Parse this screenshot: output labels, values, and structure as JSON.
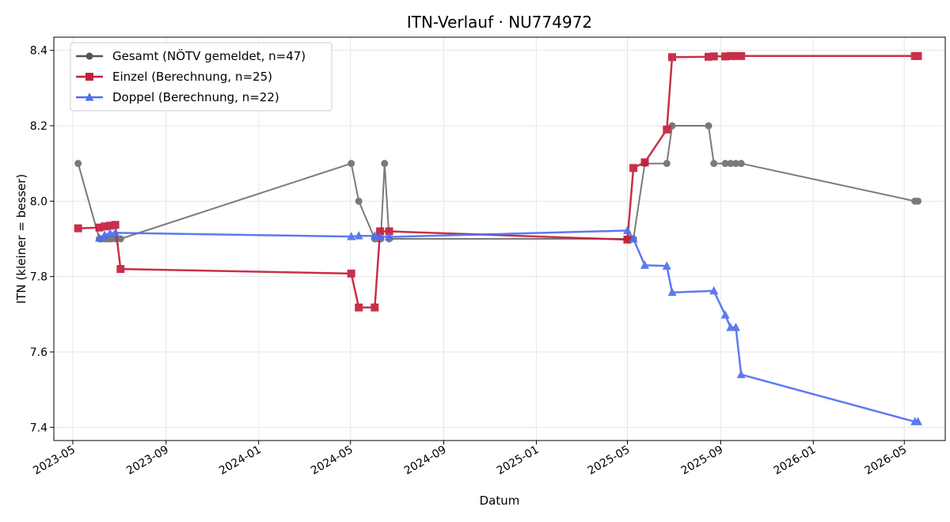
{
  "chart_data": {
    "type": "line",
    "title": "ITN-Verlauf · NU774972",
    "xlabel": "Datum",
    "ylabel": "ITN  (kleiner = besser)",
    "x_type": "date",
    "xlim": [
      "2023-04-06",
      "2026-06-24"
    ],
    "ylim": [
      7.365,
      8.435
    ],
    "x_ticks": [
      "2023-05-01",
      "2023-09-01",
      "2024-01-01",
      "2024-05-01",
      "2024-09-01",
      "2025-01-01",
      "2025-05-01",
      "2025-09-01",
      "2026-01-01",
      "2026-05-01"
    ],
    "x_tick_labels": [
      "2023-05",
      "2023-09",
      "2024-01",
      "2024-05",
      "2024-09",
      "2025-01",
      "2025-05",
      "2025-09",
      "2026-01",
      "2026-05"
    ],
    "y_ticks": [
      7.4,
      7.6,
      7.8,
      8.0,
      8.2,
      8.4
    ],
    "y_tick_labels": [
      "7.4",
      "7.6",
      "7.8",
      "8.0",
      "8.2",
      "8.4"
    ],
    "grid": true,
    "legend_position": "top-left",
    "series": [
      {
        "name": "Gesamt (NÖTV gemeldet, n=47)",
        "color": "#555555",
        "marker": "circle",
        "points": [
          [
            "2023-05-08",
            8.1
          ],
          [
            "2023-06-05",
            7.9
          ],
          [
            "2023-06-08",
            7.9
          ],
          [
            "2023-06-12",
            7.9
          ],
          [
            "2023-06-15",
            7.9
          ],
          [
            "2023-06-18",
            7.9
          ],
          [
            "2023-06-21",
            7.9
          ],
          [
            "2023-06-26",
            7.9
          ],
          [
            "2023-07-03",
            7.9
          ],
          [
            "2024-05-02",
            8.1
          ],
          [
            "2024-05-12",
            8.0
          ],
          [
            "2024-06-02",
            7.9
          ],
          [
            "2024-06-06",
            7.9
          ],
          [
            "2024-06-10",
            7.9
          ],
          [
            "2024-06-15",
            8.1
          ],
          [
            "2024-06-21",
            7.9
          ],
          [
            "2025-05-01",
            7.9
          ],
          [
            "2025-05-05",
            7.9
          ],
          [
            "2025-05-09",
            7.9
          ],
          [
            "2025-05-24",
            8.1
          ],
          [
            "2025-06-22",
            8.1
          ],
          [
            "2025-06-29",
            8.2
          ],
          [
            "2025-08-16",
            8.2
          ],
          [
            "2025-08-23",
            8.1
          ],
          [
            "2025-09-07",
            8.1
          ],
          [
            "2025-09-14",
            8.1
          ],
          [
            "2025-09-21",
            8.1
          ],
          [
            "2025-09-28",
            8.1
          ],
          [
            "2026-05-15",
            8.0
          ],
          [
            "2026-05-19",
            8.0
          ]
        ]
      },
      {
        "name": "Einzel (Berechnung, n=25)",
        "color": "#c41e3a",
        "marker": "square",
        "points": [
          [
            "2023-05-08",
            7.928
          ],
          [
            "2023-06-05",
            7.93
          ],
          [
            "2023-06-12",
            7.933
          ],
          [
            "2023-06-19",
            7.935
          ],
          [
            "2023-06-26",
            7.937
          ],
          [
            "2023-07-03",
            7.82
          ],
          [
            "2024-05-02",
            7.808
          ],
          [
            "2024-05-12",
            7.718
          ],
          [
            "2024-06-02",
            7.718
          ],
          [
            "2024-06-09",
            7.92
          ],
          [
            "2024-06-21",
            7.92
          ],
          [
            "2025-05-01",
            7.898
          ],
          [
            "2025-05-09",
            8.088
          ],
          [
            "2025-05-24",
            8.103
          ],
          [
            "2025-06-22",
            8.19
          ],
          [
            "2025-06-29",
            8.382
          ],
          [
            "2025-08-16",
            8.383
          ],
          [
            "2025-08-23",
            8.384
          ],
          [
            "2025-09-07",
            8.384
          ],
          [
            "2025-09-14",
            8.385
          ],
          [
            "2025-09-21",
            8.385
          ],
          [
            "2025-09-28",
            8.385
          ],
          [
            "2026-05-15",
            8.385
          ],
          [
            "2026-05-19",
            8.385
          ]
        ]
      },
      {
        "name": "Doppel (Berechnung, n=22)",
        "color": "#4f6ff0",
        "marker": "triangle",
        "points": [
          [
            "2023-06-05",
            7.902
          ],
          [
            "2023-06-12",
            7.91
          ],
          [
            "2023-06-19",
            7.915
          ],
          [
            "2023-06-26",
            7.916
          ],
          [
            "2024-05-02",
            7.906
          ],
          [
            "2024-05-12",
            7.908
          ],
          [
            "2024-06-02",
            7.908
          ],
          [
            "2024-06-09",
            7.906
          ],
          [
            "2024-06-21",
            7.905
          ],
          [
            "2025-05-01",
            7.922
          ],
          [
            "2025-05-09",
            7.9
          ],
          [
            "2025-05-24",
            7.83
          ],
          [
            "2025-06-22",
            7.828
          ],
          [
            "2025-06-29",
            7.758
          ],
          [
            "2025-08-23",
            7.762
          ],
          [
            "2025-09-07",
            7.698
          ],
          [
            "2025-09-14",
            7.665
          ],
          [
            "2025-09-21",
            7.665
          ],
          [
            "2025-09-28",
            7.54
          ],
          [
            "2026-05-15",
            7.415
          ],
          [
            "2026-05-19",
            7.415
          ]
        ]
      }
    ]
  }
}
